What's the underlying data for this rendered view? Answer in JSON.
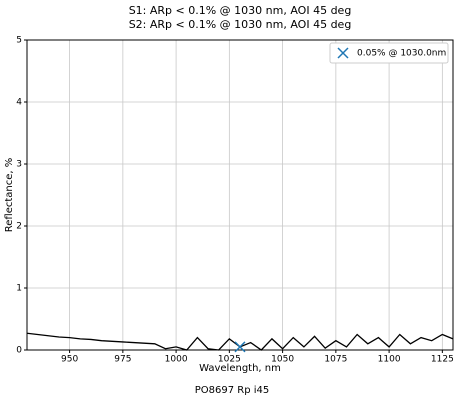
{
  "chart_data": {
    "type": "line",
    "title": [
      "S1: ARp < 0.1% @ 1030 nm, AOI 45 deg",
      "S2: ARp < 0.1% @ 1030 nm, AOI 45 deg"
    ],
    "xlabel": "Wavelength, nm",
    "ylabel": "Reflectance, %",
    "footer": "PO8697 Rp i45",
    "xlim": [
      930,
      1130
    ],
    "xticks": [
      950,
      975,
      1000,
      1025,
      1050,
      1075,
      1100,
      1125
    ],
    "ylim": [
      0,
      5
    ],
    "yticks": [
      0,
      1,
      2,
      3,
      4,
      5
    ],
    "grid": true,
    "legend": "upper right",
    "series": [
      {
        "color": "#000000",
        "marker": "none",
        "x": [
          930,
          935,
          940,
          945,
          950,
          955,
          960,
          965,
          970,
          975,
          980,
          985,
          990,
          995,
          1000,
          1005,
          1010,
          1015,
          1020,
          1025,
          1030,
          1035,
          1040,
          1045,
          1050,
          1055,
          1060,
          1065,
          1070,
          1075,
          1080,
          1085,
          1090,
          1095,
          1100,
          1105,
          1110,
          1115,
          1120,
          1125,
          1130
        ],
        "values": [
          0.27,
          0.25,
          0.23,
          0.21,
          0.2,
          0.18,
          0.17,
          0.15,
          0.14,
          0.13,
          0.12,
          0.11,
          0.1,
          0.02,
          0.05,
          0.0,
          0.2,
          0.02,
          0.0,
          0.18,
          0.05,
          0.12,
          0.0,
          0.18,
          0.02,
          0.2,
          0.05,
          0.22,
          0.03,
          0.15,
          0.05,
          0.25,
          0.1,
          0.2,
          0.05,
          0.25,
          0.1,
          0.2,
          0.15,
          0.25,
          0.18
        ]
      },
      {
        "name": "0.05% @ 1030.0nm",
        "color": "#1f77b4",
        "marker": "x",
        "x": [
          1030
        ],
        "values": [
          0.05
        ]
      }
    ]
  }
}
